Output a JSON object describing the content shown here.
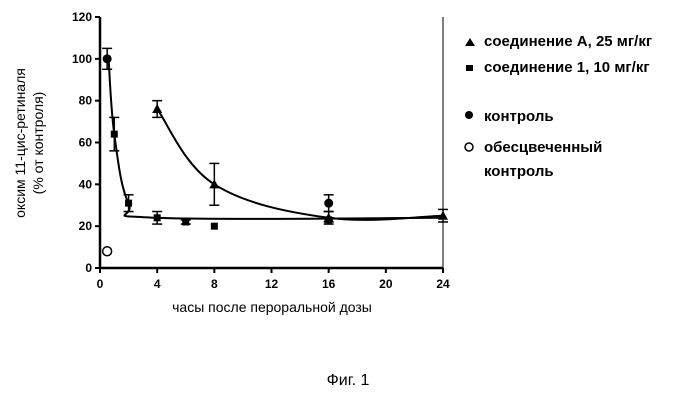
{
  "chart_data": {
    "type": "scatter",
    "xlabel": "часы после пероральной дозы",
    "ylabel_line1": "оксим 11-цис-ретиналя",
    "ylabel_line2": "(% от контроля)",
    "xlim": [
      0,
      24
    ],
    "ylim": [
      0,
      120
    ],
    "x_ticks": [
      0,
      4,
      8,
      12,
      16,
      20,
      24
    ],
    "y_ticks": [
      0,
      20,
      40,
      60,
      80,
      100,
      120
    ],
    "grid": false,
    "legend_position": "right",
    "series": [
      {
        "name": "соединение А, 25 мг/кг",
        "marker": "triangle",
        "x": [
          4,
          8,
          16,
          24
        ],
        "y": [
          76,
          40,
          24,
          25
        ],
        "err": [
          4,
          10,
          3,
          3
        ],
        "fit_line": true
      },
      {
        "name": "соединение 1, 10 мг/кг",
        "marker": "square",
        "x": [
          1,
          2,
          4,
          6,
          8,
          16
        ],
        "y": [
          64,
          31,
          24,
          22,
          20,
          23
        ],
        "err": [
          8,
          4,
          3,
          1,
          0,
          1
        ],
        "fit_line": true
      },
      {
        "name": "контроль",
        "marker": "filled-circle",
        "x": [
          0.5,
          16
        ],
        "y": [
          100,
          31
        ],
        "err": [
          5,
          4
        ],
        "fit_line": false
      },
      {
        "name": "обесцвеченный контроль",
        "marker": "open-circle",
        "x": [
          0.5
        ],
        "y": [
          8
        ],
        "err": [
          0
        ],
        "fit_line": false
      }
    ]
  },
  "legend": {
    "compound_a": "соединение А, 25 мг/кг",
    "compound_1": "соединение 1, 10 мг/кг",
    "control": "контроль",
    "bleached_line1": "обесцвеченный",
    "bleached_line2": "контроль"
  },
  "caption": "Фиг. 1"
}
